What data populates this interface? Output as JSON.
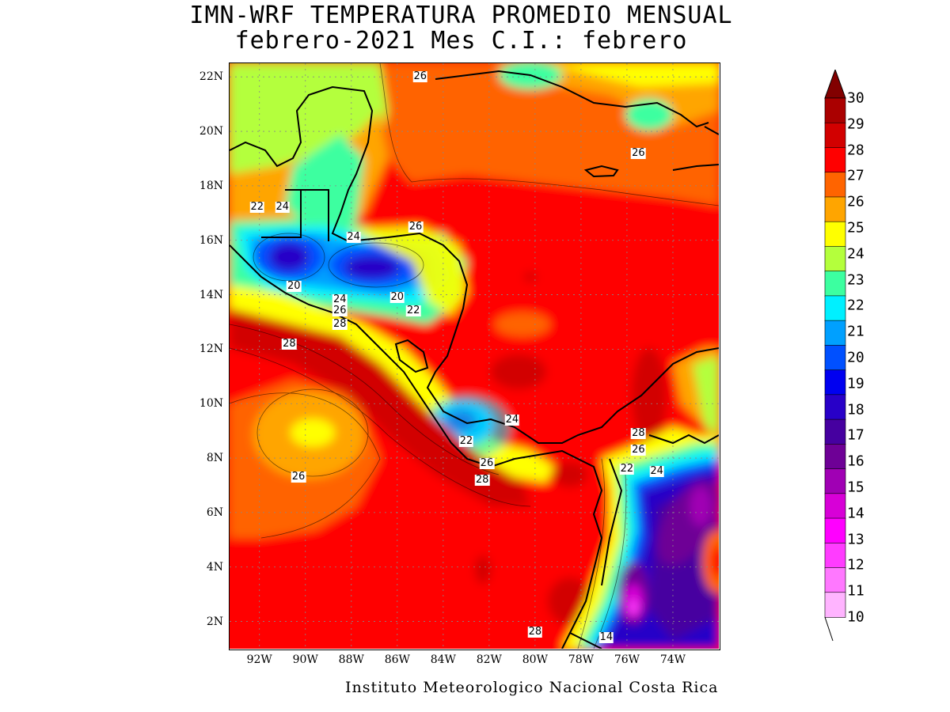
{
  "title_line1": "IMN-WRF  TEMPERATURA PROMEDIO MENSUAL",
  "title_line2": "febrero-2021 Mes C.I.: febrero",
  "credit": "Instituto Meteorologico Nacional Costa Rica",
  "map_extent": {
    "lon_min": -93.3,
    "lon_max": -72.0,
    "lat_min": 1.0,
    "lat_max": 22.5
  },
  "lat_ticks": [
    {
      "value": 22,
      "label": "22N"
    },
    {
      "value": 20,
      "label": "20N"
    },
    {
      "value": 18,
      "label": "18N"
    },
    {
      "value": 16,
      "label": "16N"
    },
    {
      "value": 14,
      "label": "14N"
    },
    {
      "value": 12,
      "label": "12N"
    },
    {
      "value": 10,
      "label": "10N"
    },
    {
      "value": 8,
      "label": "8N"
    },
    {
      "value": 6,
      "label": "6N"
    },
    {
      "value": 4,
      "label": "4N"
    },
    {
      "value": 2,
      "label": "2N"
    }
  ],
  "lon_ticks": [
    {
      "value": -92,
      "label": "92W"
    },
    {
      "value": -90,
      "label": "90W"
    },
    {
      "value": -88,
      "label": "88W"
    },
    {
      "value": -86,
      "label": "86W"
    },
    {
      "value": -84,
      "label": "84W"
    },
    {
      "value": -82,
      "label": "82W"
    },
    {
      "value": -80,
      "label": "80W"
    },
    {
      "value": -78,
      "label": "78W"
    },
    {
      "value": -76,
      "label": "76W"
    },
    {
      "value": -74,
      "label": "74W"
    }
  ],
  "contour_labels": [
    {
      "text": "26",
      "lon": -85.0,
      "lat": 22.0
    },
    {
      "text": "26",
      "lon": -75.5,
      "lat": 19.2
    },
    {
      "text": "22",
      "lon": -92.1,
      "lat": 17.2
    },
    {
      "text": "24",
      "lon": -91.0,
      "lat": 17.2
    },
    {
      "text": "24",
      "lon": -87.9,
      "lat": 16.1
    },
    {
      "text": "26",
      "lon": -85.2,
      "lat": 16.5
    },
    {
      "text": "20",
      "lon": -90.5,
      "lat": 14.3
    },
    {
      "text": "24",
      "lon": -88.5,
      "lat": 13.8
    },
    {
      "text": "26",
      "lon": -88.5,
      "lat": 13.4
    },
    {
      "text": "28",
      "lon": -88.5,
      "lat": 12.9
    },
    {
      "text": "20",
      "lon": -86.0,
      "lat": 13.9
    },
    {
      "text": "22",
      "lon": -85.3,
      "lat": 13.4
    },
    {
      "text": "28",
      "lon": -90.7,
      "lat": 12.2
    },
    {
      "text": "24",
      "lon": -81.0,
      "lat": 9.4
    },
    {
      "text": "22",
      "lon": -83.0,
      "lat": 8.6
    },
    {
      "text": "28",
      "lon": -75.5,
      "lat": 8.9
    },
    {
      "text": "26",
      "lon": -75.5,
      "lat": 8.3
    },
    {
      "text": "26",
      "lon": -82.1,
      "lat": 7.8
    },
    {
      "text": "28",
      "lon": -82.3,
      "lat": 7.2
    },
    {
      "text": "22",
      "lon": -76.0,
      "lat": 7.6
    },
    {
      "text": "24",
      "lon": -74.7,
      "lat": 7.5
    },
    {
      "text": "26",
      "lon": -90.3,
      "lat": 7.3
    },
    {
      "text": "28",
      "lon": -80.0,
      "lat": 1.6
    },
    {
      "text": "14",
      "lon": -76.9,
      "lat": 1.4
    }
  ],
  "colorbar": {
    "levels": [
      "10",
      "11",
      "12",
      "13",
      "14",
      "15",
      "16",
      "17",
      "18",
      "19",
      "20",
      "21",
      "22",
      "23",
      "24",
      "25",
      "26",
      "27",
      "28",
      "29",
      "30"
    ],
    "colors": [
      "#ffb4ff",
      "#ff78ff",
      "#ff3cff",
      "#ff00ff",
      "#d700d7",
      "#a000b4",
      "#6e0096",
      "#4600a0",
      "#2800c8",
      "#0000f0",
      "#0050ff",
      "#00a0ff",
      "#00f0ff",
      "#3cffa0",
      "#b4ff3c",
      "#ffff00",
      "#ffa500",
      "#ff6400",
      "#ff0000",
      "#d20000",
      "#aa0000"
    ],
    "over_color": "#820000"
  }
}
